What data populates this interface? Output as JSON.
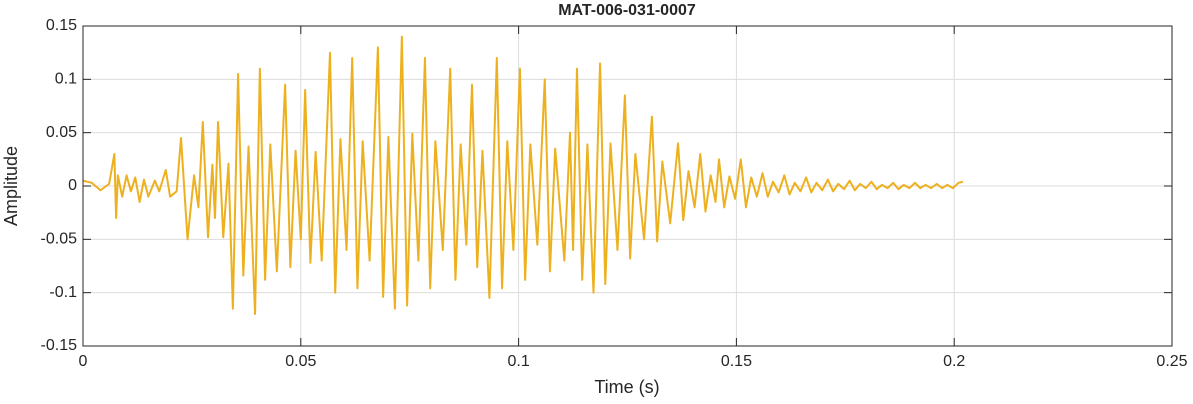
{
  "chart_data": {
    "type": "line",
    "title": "MAT-006-031-0007",
    "xlabel": "Time (s)",
    "ylabel": "Amplitude",
    "grid": true,
    "box": true,
    "xlim": [
      0,
      0.25
    ],
    "xticks": [
      0,
      0.05,
      0.1,
      0.15,
      0.2,
      0.25
    ],
    "ylim": [
      -0.15,
      0.15
    ],
    "yticks": [
      -0.15,
      -0.1,
      -0.05,
      0,
      0.05,
      0.1,
      0.15
    ],
    "series": [
      {
        "color": "#EDB120",
        "x": [
          0,
          0.002,
          0.004,
          0.006,
          0.0072,
          0.0076,
          0.008,
          0.009,
          0.01,
          0.011,
          0.012,
          0.013,
          0.014,
          0.015,
          0.0165,
          0.0175,
          0.019,
          0.02,
          0.0215,
          0.0225,
          0.024,
          0.0255,
          0.0265,
          0.0275,
          0.0287,
          0.0297,
          0.0303,
          0.031,
          0.0322,
          0.0334,
          0.0344,
          0.0356,
          0.0368,
          0.038,
          0.0395,
          0.0406,
          0.0418,
          0.043,
          0.0445,
          0.0464,
          0.0476,
          0.0488,
          0.05,
          0.051,
          0.0522,
          0.0534,
          0.0548,
          0.0567,
          0.0579,
          0.0591,
          0.0605,
          0.0618,
          0.063,
          0.0642,
          0.0658,
          0.0677,
          0.0689,
          0.0701,
          0.0716,
          0.0732,
          0.0744,
          0.0756,
          0.077,
          0.0785,
          0.0797,
          0.0809,
          0.0826,
          0.0843,
          0.0855,
          0.0867,
          0.088,
          0.0893,
          0.0905,
          0.0917,
          0.0933,
          0.095,
          0.0962,
          0.0974,
          0.0988,
          0.1003,
          0.1015,
          0.1027,
          0.1043,
          0.106,
          0.1072,
          0.1084,
          0.1105,
          0.1118,
          0.1125,
          0.1134,
          0.1146,
          0.1158,
          0.1172,
          0.1187,
          0.1199,
          0.1211,
          0.1227,
          0.1244,
          0.1256,
          0.1268,
          0.1288,
          0.1306,
          0.1318,
          0.133,
          0.1348,
          0.1366,
          0.1378,
          0.139,
          0.1404,
          0.1417,
          0.1429,
          0.1441,
          0.1452,
          0.146,
          0.1472,
          0.1484,
          0.1497,
          0.151,
          0.1522,
          0.1534,
          0.1547,
          0.156,
          0.1572,
          0.1584,
          0.1597,
          0.161,
          0.1622,
          0.1634,
          0.1647,
          0.166,
          0.1672,
          0.1684,
          0.1697,
          0.171,
          0.1722,
          0.1734,
          0.1747,
          0.176,
          0.1772,
          0.1784,
          0.1797,
          0.181,
          0.1822,
          0.1834,
          0.1847,
          0.186,
          0.1872,
          0.1884,
          0.1897,
          0.191,
          0.1922,
          0.1934,
          0.1947,
          0.196,
          0.1972,
          0.1984,
          0.1997,
          0.201,
          0.202
        ],
        "values": [
          0.005,
          0.003,
          -0.004,
          0.002,
          0.03,
          -0.03,
          0.01,
          -0.01,
          0.01,
          -0.005,
          0.008,
          -0.015,
          0.006,
          -0.01,
          0.005,
          -0.005,
          0.015,
          -0.01,
          -0.005,
          0.045,
          -0.05,
          0.01,
          -0.02,
          0.06,
          -0.048,
          0.02,
          -0.03,
          0.06,
          -0.048,
          0.021,
          -0.115,
          0.105,
          -0.084,
          0.037,
          -0.12,
          0.11,
          -0.088,
          0.039,
          -0.08,
          0.095,
          -0.076,
          0.033,
          -0.05,
          0.09,
          -0.072,
          0.032,
          -0.07,
          0.125,
          -0.1,
          0.044,
          -0.06,
          0.12,
          -0.096,
          0.042,
          -0.07,
          0.13,
          -0.104,
          0.046,
          -0.115,
          0.14,
          -0.112,
          0.049,
          -0.07,
          0.12,
          -0.096,
          0.042,
          -0.06,
          0.11,
          -0.088,
          0.039,
          -0.055,
          0.095,
          -0.076,
          0.033,
          -0.105,
          0.12,
          -0.096,
          0.042,
          -0.06,
          0.11,
          -0.088,
          0.039,
          -0.055,
          0.1,
          -0.08,
          0.035,
          -0.07,
          0.05,
          -0.06,
          0.11,
          -0.088,
          0.039,
          -0.1,
          0.115,
          -0.092,
          0.04,
          -0.06,
          0.085,
          -0.068,
          0.03,
          -0.05,
          0.065,
          -0.052,
          0.023,
          -0.035,
          0.04,
          -0.032,
          0.014,
          -0.02,
          0.03,
          -0.024,
          0.01,
          -0.015,
          0.025,
          -0.02,
          0.009,
          -0.012,
          0.025,
          -0.02,
          0.008,
          -0.01,
          0.012,
          -0.01,
          0.004,
          -0.006,
          0.01,
          -0.008,
          0.003,
          -0.005,
          0.008,
          -0.006,
          0.003,
          -0.004,
          0.006,
          -0.005,
          0.002,
          -0.003,
          0.005,
          -0.004,
          0.002,
          -0.002,
          0.004,
          -0.003,
          0.001,
          -0.002,
          0.003,
          -0.003,
          0.001,
          -0.002,
          0.003,
          -0.002,
          0.001,
          -0.002,
          0.002,
          -0.002,
          0.001,
          -0.002,
          0.003,
          0.004
        ]
      }
    ]
  }
}
